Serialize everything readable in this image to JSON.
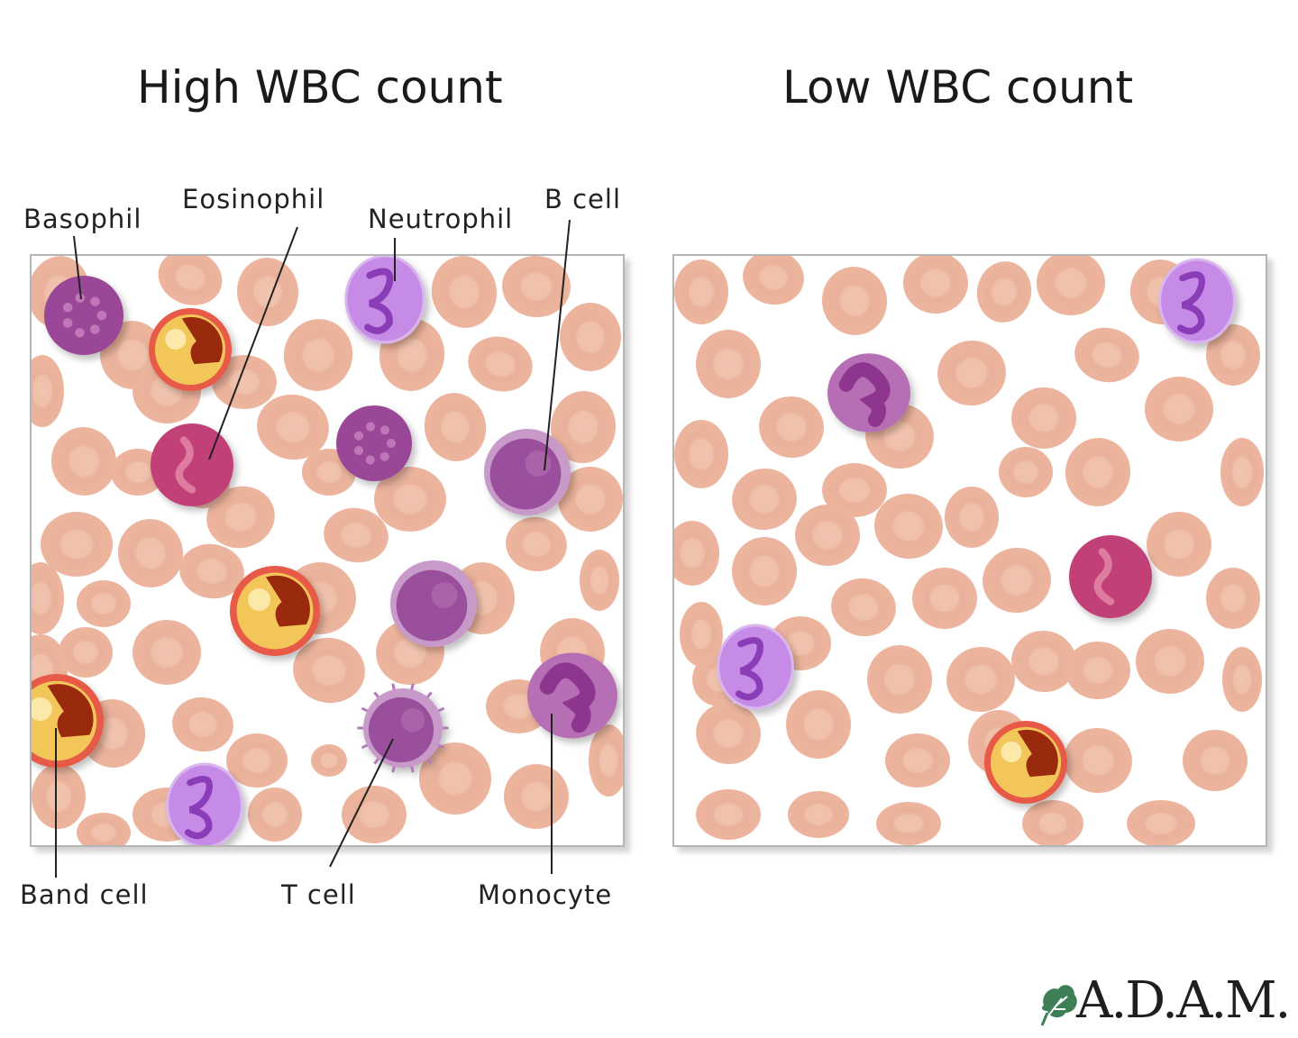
{
  "titles": {
    "high": "High WBC count",
    "low": "Low WBC count"
  },
  "labels": {
    "basophil": "Basophil",
    "eosinophil": "Eosinophil",
    "neutrophil": "Neutrophil",
    "b_cell": "B cell",
    "band_cell": "Band cell",
    "t_cell": "T cell",
    "monocyte": "Monocyte"
  },
  "logo": {
    "text": "A.D.A.M.",
    "icon": "leaf-icon"
  },
  "colors": {
    "rbc_fill": "#ecb59e",
    "rbc_center": "#f3c9b6",
    "neutrophil": "#c68be6",
    "neutrophil_nucleus": "#8b3db8",
    "lymphocyte": "#9a4f9c",
    "eosinophil": "#c24078",
    "band_cell": "#e75a47",
    "band_nucleus": "#9a2a0c",
    "basophil": "#9b4698"
  }
}
